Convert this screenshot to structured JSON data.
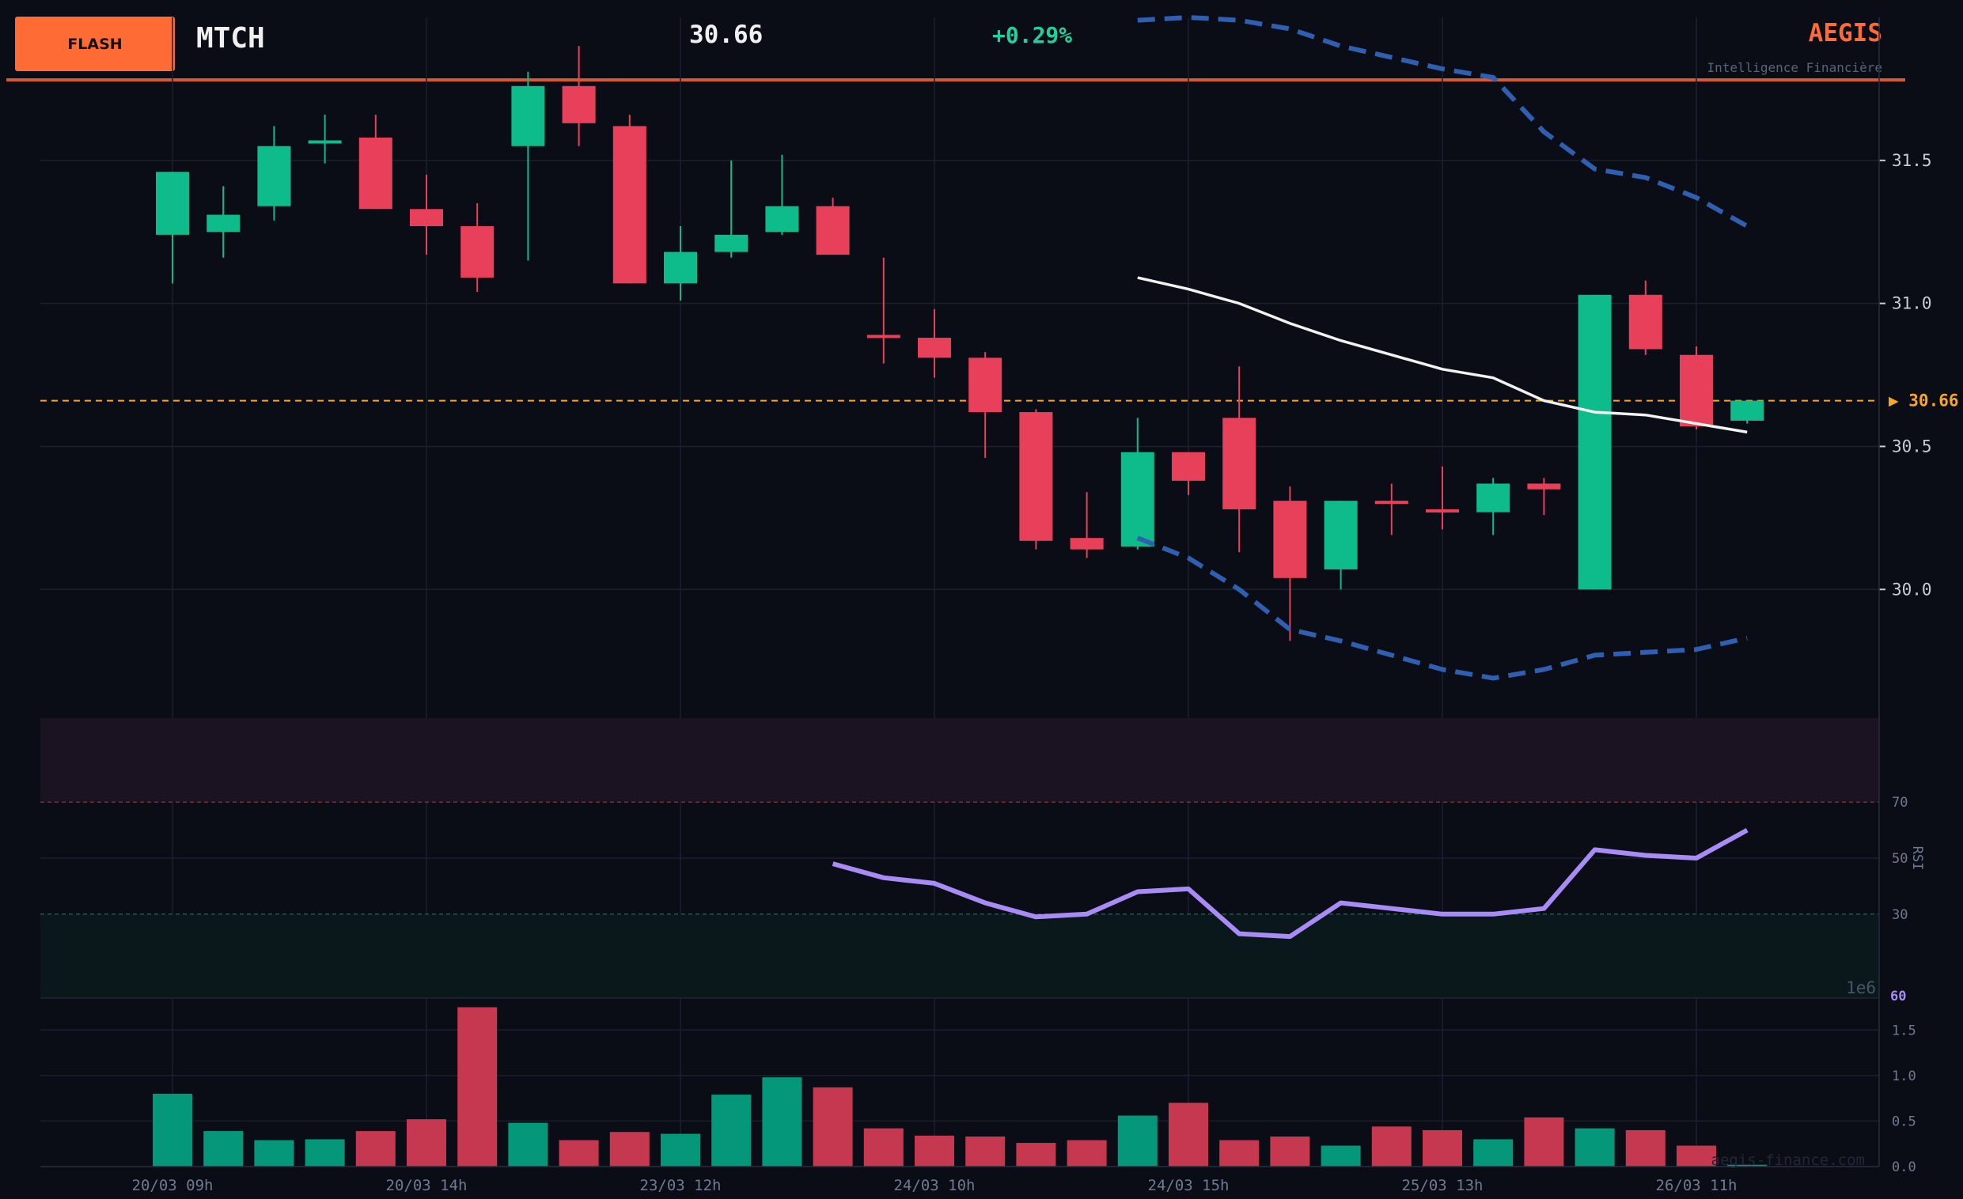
{
  "header": {
    "badge": "FLASH",
    "ticker": "MTCH",
    "price": "30.66",
    "change": "+0.29%",
    "brand": "AEGIS",
    "tagline": "Intelligence Financière"
  },
  "watermark": "aegis-finance.com",
  "colors": {
    "background": "#0b0d16",
    "up": "#0ebc8b",
    "down": "#e8405a",
    "bollinger": "#2f5fb0",
    "sma": "#f2f2f2",
    "rsi": "#a98bf5",
    "last_price": "#f5a623",
    "accent": "#ff6b35"
  },
  "chart_data": [
    {
      "type": "candlestick",
      "ylim": [
        29.55,
        32.0
      ],
      "y_ticks": [
        30.0,
        30.5,
        31.0,
        31.5
      ],
      "last_price": 30.66,
      "last_price_label": "▶ 30.66",
      "x_tick_labels": [
        {
          "index": 0,
          "label": "20/03 09h"
        },
        {
          "index": 5,
          "label": "20/03 14h"
        },
        {
          "index": 10,
          "label": "23/03 12h"
        },
        {
          "index": 15,
          "label": "24/03 10h"
        },
        {
          "index": 20,
          "label": "24/03 15h"
        },
        {
          "index": 25,
          "label": "25/03 13h"
        },
        {
          "index": 30,
          "label": "26/03 11h"
        }
      ],
      "candles": [
        {
          "o": 31.24,
          "h": 31.46,
          "l": 31.07,
          "c": 31.46
        },
        {
          "o": 31.25,
          "h": 31.41,
          "l": 31.16,
          "c": 31.31
        },
        {
          "o": 31.34,
          "h": 31.62,
          "l": 31.29,
          "c": 31.55
        },
        {
          "o": 31.56,
          "h": 31.66,
          "l": 31.49,
          "c": 31.57
        },
        {
          "o": 31.58,
          "h": 31.66,
          "l": 31.33,
          "c": 31.33
        },
        {
          "o": 31.33,
          "h": 31.45,
          "l": 31.17,
          "c": 31.27
        },
        {
          "o": 31.27,
          "h": 31.35,
          "l": 31.04,
          "c": 31.09
        },
        {
          "o": 31.55,
          "h": 31.81,
          "l": 31.15,
          "c": 31.76
        },
        {
          "o": 31.76,
          "h": 31.9,
          "l": 31.55,
          "c": 31.63
        },
        {
          "o": 31.62,
          "h": 31.66,
          "l": 31.07,
          "c": 31.07
        },
        {
          "o": 31.07,
          "h": 31.27,
          "l": 31.01,
          "c": 31.18
        },
        {
          "o": 31.18,
          "h": 31.5,
          "l": 31.16,
          "c": 31.24
        },
        {
          "o": 31.25,
          "h": 31.52,
          "l": 31.24,
          "c": 31.34
        },
        {
          "o": 31.34,
          "h": 31.37,
          "l": 31.17,
          "c": 31.17
        },
        {
          "o": 30.89,
          "h": 31.16,
          "l": 30.79,
          "c": 30.88
        },
        {
          "o": 30.88,
          "h": 30.98,
          "l": 30.74,
          "c": 30.81
        },
        {
          "o": 30.81,
          "h": 30.83,
          "l": 30.46,
          "c": 30.62
        },
        {
          "o": 30.62,
          "h": 30.63,
          "l": 30.14,
          "c": 30.17
        },
        {
          "o": 30.18,
          "h": 30.34,
          "l": 30.11,
          "c": 30.14
        },
        {
          "o": 30.15,
          "h": 30.6,
          "l": 30.14,
          "c": 30.48
        },
        {
          "o": 30.48,
          "h": 30.48,
          "l": 30.33,
          "c": 30.38
        },
        {
          "o": 30.6,
          "h": 30.78,
          "l": 30.13,
          "c": 30.28
        },
        {
          "o": 30.31,
          "h": 30.36,
          "l": 29.82,
          "c": 30.04
        },
        {
          "o": 30.07,
          "h": 30.31,
          "l": 30.0,
          "c": 30.31
        },
        {
          "o": 30.31,
          "h": 30.37,
          "l": 30.19,
          "c": 30.3
        },
        {
          "o": 30.28,
          "h": 30.43,
          "l": 30.21,
          "c": 30.27
        },
        {
          "o": 30.27,
          "h": 30.39,
          "l": 30.19,
          "c": 30.37
        },
        {
          "o": 30.37,
          "h": 30.39,
          "l": 30.26,
          "c": 30.35
        },
        {
          "o": 30.0,
          "h": 31.03,
          "l": 30.0,
          "c": 31.03
        },
        {
          "o": 31.03,
          "h": 31.08,
          "l": 30.82,
          "c": 30.84
        },
        {
          "o": 30.82,
          "h": 30.85,
          "l": 30.56,
          "c": 30.57
        },
        {
          "o": 30.59,
          "h": 30.66,
          "l": 30.58,
          "c": 30.66
        }
      ],
      "sma": {
        "start_index": 19,
        "values": [
          31.09,
          31.05,
          31.0,
          30.93,
          30.87,
          30.82,
          30.77,
          30.74,
          30.66,
          30.62,
          30.61,
          30.58,
          30.55
        ]
      },
      "bollinger_upper": {
        "start_index": 19,
        "values": [
          31.99,
          32.0,
          31.99,
          31.96,
          31.9,
          31.86,
          31.82,
          31.79,
          31.6,
          31.47,
          31.44,
          31.37,
          31.27
        ]
      },
      "bollinger_lower": {
        "start_index": 19,
        "values": [
          30.18,
          30.11,
          30.0,
          29.86,
          29.82,
          29.77,
          29.72,
          29.69,
          29.72,
          29.77,
          29.78,
          29.79,
          29.83
        ]
      }
    },
    {
      "type": "line",
      "name": "RSI",
      "ylabel": "RSI",
      "ylim": [
        0,
        100
      ],
      "y_ticks": [
        30,
        50,
        70
      ],
      "overbought": 70,
      "oversold": 30,
      "last_value_label": "60",
      "start_index": 13,
      "values": [
        48,
        43,
        41,
        34,
        29,
        30,
        38,
        39,
        23,
        22,
        34,
        32,
        30,
        30,
        32,
        53,
        51,
        50,
        60
      ]
    },
    {
      "type": "bar",
      "name": "Volume",
      "scale_label": "1e6",
      "ylim": [
        0,
        1.85
      ],
      "y_ticks": [
        0.0,
        0.5,
        1.0,
        1.5
      ],
      "values": [
        0.8,
        0.39,
        0.29,
        0.3,
        0.39,
        0.52,
        1.75,
        0.48,
        0.29,
        0.38,
        0.36,
        0.79,
        0.98,
        0.87,
        0.42,
        0.34,
        0.33,
        0.26,
        0.29,
        0.56,
        0.7,
        0.29,
        0.33,
        0.23,
        0.44,
        0.4,
        0.3,
        0.54,
        0.42,
        0.4,
        0.23,
        0.02
      ]
    }
  ]
}
